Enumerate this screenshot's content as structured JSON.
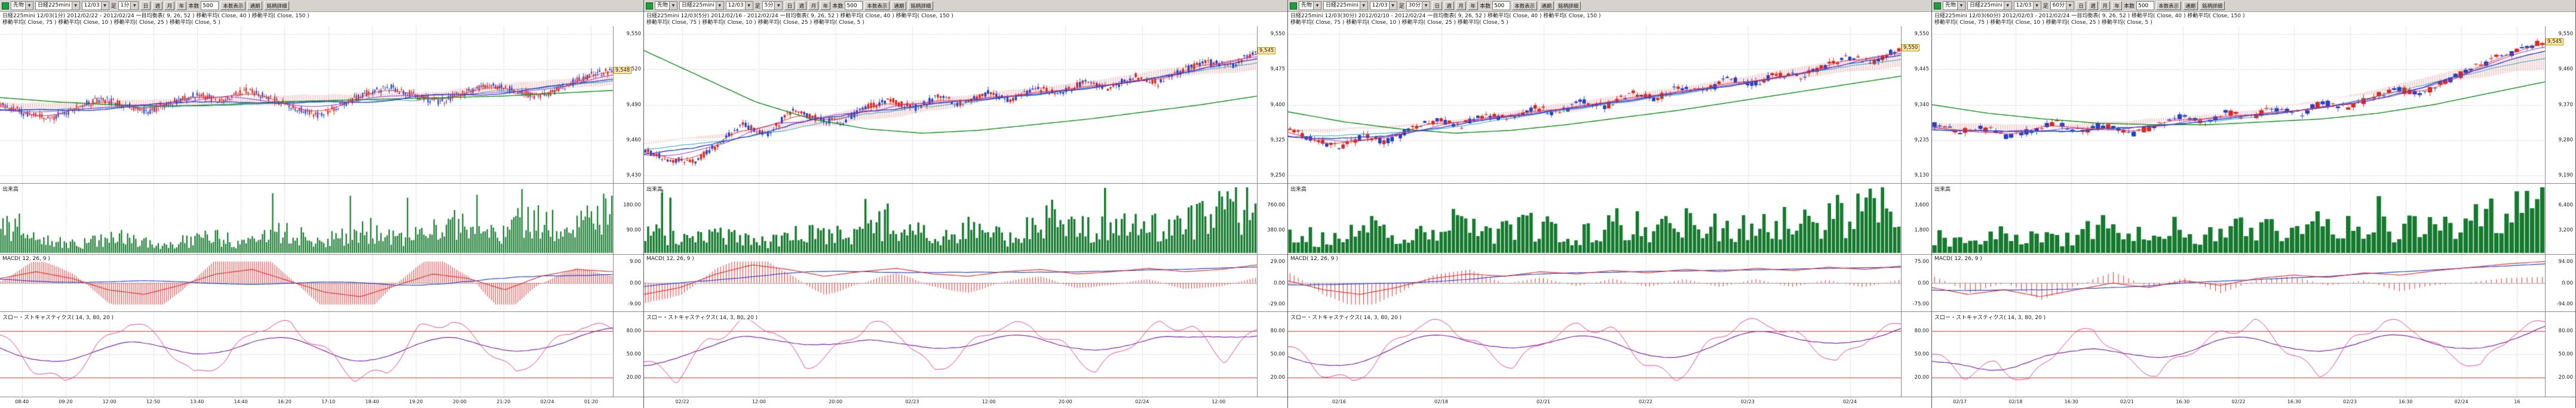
{
  "colors": {
    "up_candle": "#d8281e",
    "down_candle": "#2440c8",
    "ma_fast": "#e03131",
    "ma_mid": "#2440c8",
    "ma_slow": "#0a8a12",
    "ma_purple": "#8b2fc9",
    "ma_cyan": "#18a0b8",
    "cloud": "#e05050",
    "volume_bar": "#157a2e",
    "macd_line": "#e03131",
    "macd_signal": "#2440c8",
    "macd_hist": "#e03131",
    "stoch_k": "#e83e8c",
    "stoch_d": "#7a1fa2",
    "guide": "#e03131",
    "grid": "#bdbdbd",
    "zero_line": "#999999"
  },
  "panels": [
    {
      "toolbar": {
        "category": "先物",
        "instrument": "日経225mini",
        "contract": "12/03",
        "ashi_label": "足",
        "timeframe": "1分",
        "period_buttons": [
          "日",
          "週",
          "月",
          "年"
        ],
        "bars_label": "本数",
        "bars_value": "500",
        "bars_button": "本数表示",
        "zenki_button": "通期",
        "detail_button": "銘柄詳細"
      },
      "legend": {
        "line1": "日経225mini 12/03(1分)  2012/02/22 - 2012/02/24    一目均衡表( 9, 26, 52 )  移動平均( Close, 40 )  移動平均( Close, 150 )",
        "line2": "移動平均( Close, 75 )  移動平均( Close, 10 )  移動平均( Close, 25 )  移動平均( Close, 5 )"
      },
      "sections": {
        "volume_label": "出来高",
        "macd_label": "MACD( 12, 26, 9 )",
        "stoch_label": "スロー・ストキャスティクス( 14, 3, 80, 20 )"
      },
      "axes": {
        "price_ticks": [
          "9,550",
          "9,520",
          "9,490",
          "9,460",
          "9,430"
        ],
        "last_price": "9,548",
        "volume_ticks": [
          "180.00",
          "90.00"
        ],
        "macd_ticks": [
          "9.00",
          "0.00",
          "-9.00"
        ],
        "stoch_ticks": [
          "80.00",
          "50.00",
          "20.00"
        ],
        "time_ticks": [
          "08:40",
          "09:20",
          "12:00",
          "12:50",
          "13:40",
          "14:40",
          "16:20",
          "17:10",
          "18:40",
          "19:20",
          "20:00",
          "21:20",
          "02/24",
          "01:20"
        ]
      },
      "chart_data": {
        "type": "candlestick",
        "title": "日経225mini 12/03(1分)",
        "candles": 300,
        "seed": 11,
        "price_range": [
          9430,
          9555
        ],
        "price_path": [
          0.5,
          0.44,
          0.4,
          0.47,
          0.54,
          0.5,
          0.45,
          0.52,
          0.57,
          0.53,
          0.6,
          0.55,
          0.48,
          0.43,
          0.5,
          0.58,
          0.62,
          0.56,
          0.52,
          0.58,
          0.64,
          0.6,
          0.55,
          0.62,
          0.7,
          0.74
        ],
        "ma_slow_path": [
          0.55,
          0.52,
          0.5,
          0.49,
          0.5,
          0.52,
          0.53,
          0.54,
          0.55,
          0.56,
          0.58,
          0.6
        ],
        "volume": [
          0.55,
          0.25,
          0.15,
          0.3,
          0.12,
          0.28,
          0.18,
          0.35,
          0.22,
          0.4,
          0.25,
          0.5,
          0.3,
          0.55,
          0.45,
          0.7
        ],
        "macd_path": [
          0.2,
          0.5,
          0.2,
          -0.3,
          -0.5,
          -0.1,
          0.4,
          0.6,
          0.1,
          -0.4,
          -0.6,
          -0.1,
          0.4,
          0.2,
          -0.3,
          0.3,
          0.6,
          0.5
        ],
        "stoch_path": [
          75,
          30,
          15,
          60,
          90,
          70,
          25,
          40,
          85,
          92,
          55,
          18,
          30,
          82,
          90,
          65,
          25,
          55,
          90,
          85
        ]
      }
    },
    {
      "toolbar": {
        "category": "先物",
        "instrument": "日経225mini",
        "contract": "12/03",
        "ashi_label": "足",
        "timeframe": "5分",
        "period_buttons": [
          "日",
          "週",
          "月",
          "年"
        ],
        "bars_label": "本数",
        "bars_value": "500",
        "bars_button": "本数表示",
        "zenki_button": "通期",
        "detail_button": "銘柄詳細"
      },
      "legend": {
        "line1": "日経225mini 12/03(5分)  2012/02/16 - 2012/02/24    一目均衡表( 9, 26, 52 )  移動平均( Close, 40 )  移動平均( Close, 150 )",
        "line2": "移動平均( Close, 75 )  移動平均( Close, 10 )  移動平均( Close, 25 )  移動平均( Close, 5 )"
      },
      "sections": {
        "volume_label": "出来高",
        "macd_label": "MACD( 12, 26, 9 )",
        "stoch_label": "スロー・ストキャスティクス( 14, 3, 80, 20 )"
      },
      "axes": {
        "price_ticks": [
          "9,550",
          "9,475",
          "9,400",
          "9,325",
          "9,250"
        ],
        "last_price": "9,545",
        "volume_ticks": [
          "760.00",
          "380.00"
        ],
        "macd_ticks": [
          "29.00",
          "0.00",
          "-29.00"
        ],
        "stoch_ticks": [
          "80.00",
          "50.00",
          "20.00"
        ],
        "time_ticks": [
          "02/22",
          "12:00",
          "20:00",
          "02/23",
          "12:00",
          "20:00",
          "02/24",
          "12:00"
        ]
      },
      "chart_data": {
        "type": "candlestick",
        "title": "日経225mini 12/03(5分)",
        "candles": 220,
        "seed": 22,
        "price_range": [
          9250,
          9560
        ],
        "price_path": [
          0.18,
          0.12,
          0.1,
          0.22,
          0.36,
          0.3,
          0.45,
          0.41,
          0.37,
          0.48,
          0.53,
          0.47,
          0.56,
          0.5,
          0.58,
          0.53,
          0.62,
          0.57,
          0.66,
          0.61,
          0.7,
          0.65,
          0.74,
          0.8,
          0.77,
          0.88
        ],
        "ma_slow_path": [
          0.88,
          0.7,
          0.52,
          0.4,
          0.33,
          0.3,
          0.32,
          0.36,
          0.4,
          0.45,
          0.5,
          0.56
        ],
        "volume": [
          0.4,
          0.2,
          0.35,
          0.15,
          0.45,
          0.25,
          0.55,
          0.3,
          0.4,
          0.25,
          0.6,
          0.35,
          0.5,
          0.4,
          0.65,
          0.8
        ],
        "macd_path": [
          -0.5,
          -0.2,
          0.4,
          0.8,
          0.6,
          0.3,
          0.5,
          0.65,
          0.4,
          0.3,
          0.5,
          0.6,
          0.4,
          0.5,
          0.65,
          0.5,
          0.6,
          0.8
        ],
        "stoch_path": [
          40,
          15,
          70,
          92,
          80,
          35,
          60,
          88,
          75,
          30,
          55,
          85,
          90,
          60,
          25,
          65,
          90,
          80,
          45,
          85
        ]
      }
    },
    {
      "toolbar": {
        "category": "先物",
        "instrument": "日経225mini",
        "contract": "12/03",
        "ashi_label": "足",
        "timeframe": "30分",
        "period_buttons": [
          "日",
          "週",
          "月",
          "年"
        ],
        "bars_label": "本数",
        "bars_value": "500",
        "bars_button": "本数表示",
        "zenki_button": "通期",
        "detail_button": "銘柄詳細"
      },
      "legend": {
        "line1": "日経225mini 12/03(30分)  2012/02/10 - 2012/02/24    一目均衡表( 9, 26, 52 )  移動平均( Close, 40 )  移動平均( Close, 150 )",
        "line2": "移動平均( Close, 75 )  移動平均( Close, 10 )  移動平均( Close, 25 )  移動平均( Close, 5 )"
      },
      "sections": {
        "volume_label": "出来高",
        "macd_label": "MACD( 12, 26, 9 )",
        "stoch_label": "スロー・ストキャスティクス( 14, 3, 80, 20 )"
      },
      "axes": {
        "price_ticks": [
          "9,550",
          "9,445",
          "9,340",
          "9,235",
          "9,130"
        ],
        "last_price": "9,550",
        "volume_ticks": [
          "3,600",
          "1,800"
        ],
        "macd_ticks": [
          "75.00",
          "0.00",
          "-75.00"
        ],
        "stoch_ticks": [
          "80.00",
          "50.00",
          "20.00"
        ],
        "time_ticks": [
          "02/16",
          "02/18",
          "02/21",
          "02/22",
          "02/23",
          "02/24"
        ]
      },
      "chart_data": {
        "type": "candlestick",
        "title": "日経225mini 12/03(30分)",
        "candles": 150,
        "seed": 33,
        "price_range": [
          9130,
          9565
        ],
        "price_path": [
          0.32,
          0.25,
          0.2,
          0.28,
          0.24,
          0.33,
          0.39,
          0.35,
          0.43,
          0.4,
          0.48,
          0.44,
          0.52,
          0.49,
          0.58,
          0.54,
          0.62,
          0.59,
          0.68,
          0.64,
          0.72,
          0.69,
          0.78,
          0.83,
          0.8,
          0.9
        ],
        "ma_slow_path": [
          0.45,
          0.38,
          0.33,
          0.3,
          0.32,
          0.36,
          0.41,
          0.46,
          0.52,
          0.58,
          0.64,
          0.7
        ],
        "volume": [
          0.35,
          0.2,
          0.4,
          0.25,
          0.5,
          0.3,
          0.45,
          0.28,
          0.55,
          0.35,
          0.6,
          0.4,
          0.52,
          0.45,
          0.7,
          0.85
        ],
        "macd_path": [
          0.1,
          -0.3,
          -0.5,
          -0.2,
          0.2,
          0.4,
          0.3,
          0.5,
          0.4,
          0.55,
          0.45,
          0.6,
          0.5,
          0.65,
          0.55,
          0.7,
          0.6,
          0.75
        ],
        "stoch_path": [
          60,
          25,
          15,
          55,
          85,
          90,
          60,
          30,
          70,
          90,
          80,
          40,
          20,
          60,
          88,
          92,
          70,
          35,
          75,
          92
        ]
      }
    },
    {
      "toolbar": {
        "category": "先物",
        "instrument": "日経225mini",
        "contract": "12/03",
        "ashi_label": "足",
        "timeframe": "60分",
        "period_buttons": [
          "日",
          "週",
          "月",
          "年"
        ],
        "bars_label": "本数",
        "bars_value": "500",
        "bars_button": "本数表示",
        "zenki_button": "通期",
        "detail_button": "銘柄詳細"
      },
      "legend": {
        "line1": "日経225mini 12/03(60分)  2012/02/03 - 2012/02/24    一目均衡表( 9, 26, 52 )  移動平均( Close, 40 )  移動平均( Close, 150 )",
        "line2": "移動平均( Close, 75 )  移動平均( Close, 10 )  移動平均( Close, 25 )  移動平均( Close, 5 )"
      },
      "sections": {
        "volume_label": "出来高",
        "macd_label": "MACD( 12, 26, 9 )",
        "stoch_label": "スロー・ストキャスティクス( 14, 3, 80, 20 )"
      },
      "axes": {
        "price_ticks": [
          "9,550",
          "9,460",
          "9,370",
          "9,280",
          "9,190"
        ],
        "last_price": "9,545",
        "volume_ticks": [
          "6,400",
          "3,200"
        ],
        "macd_ticks": [
          "94.00",
          "0.00",
          "-94.00"
        ],
        "stoch_ticks": [
          "80.00",
          "50.00",
          "20.00"
        ],
        "time_ticks": [
          "02/17",
          "02/18",
          "16:30",
          "02/21",
          "16:30",
          "02/22",
          "16:30",
          "02/23",
          "16:30",
          "02/24",
          "16"
        ]
      },
      "chart_data": {
        "type": "candlestick",
        "title": "日経225mini 12/03(60分)",
        "candles": 120,
        "seed": 44,
        "price_range": [
          9190,
          9560
        ],
        "price_path": [
          0.36,
          0.3,
          0.34,
          0.27,
          0.32,
          0.38,
          0.31,
          0.36,
          0.29,
          0.34,
          0.42,
          0.37,
          0.45,
          0.4,
          0.48,
          0.43,
          0.52,
          0.47,
          0.56,
          0.61,
          0.57,
          0.66,
          0.74,
          0.82,
          0.88,
          0.94
        ],
        "ma_slow_path": [
          0.5,
          0.44,
          0.4,
          0.37,
          0.36,
          0.36,
          0.38,
          0.4,
          0.44,
          0.5,
          0.58,
          0.66
        ],
        "volume": [
          0.3,
          0.18,
          0.38,
          0.22,
          0.48,
          0.28,
          0.42,
          0.26,
          0.52,
          0.32,
          0.58,
          0.38,
          0.5,
          0.42,
          0.68,
          0.88
        ],
        "macd_path": [
          -0.2,
          -0.5,
          -0.3,
          -0.6,
          -0.3,
          0.0,
          -0.2,
          0.1,
          -0.1,
          0.2,
          0.35,
          0.25,
          0.45,
          0.35,
          0.55,
          0.7,
          0.85,
          0.95
        ],
        "stoch_path": [
          50,
          20,
          40,
          15,
          60,
          85,
          45,
          20,
          55,
          80,
          90,
          55,
          25,
          65,
          90,
          85,
          50,
          30,
          80,
          95
        ]
      }
    }
  ]
}
